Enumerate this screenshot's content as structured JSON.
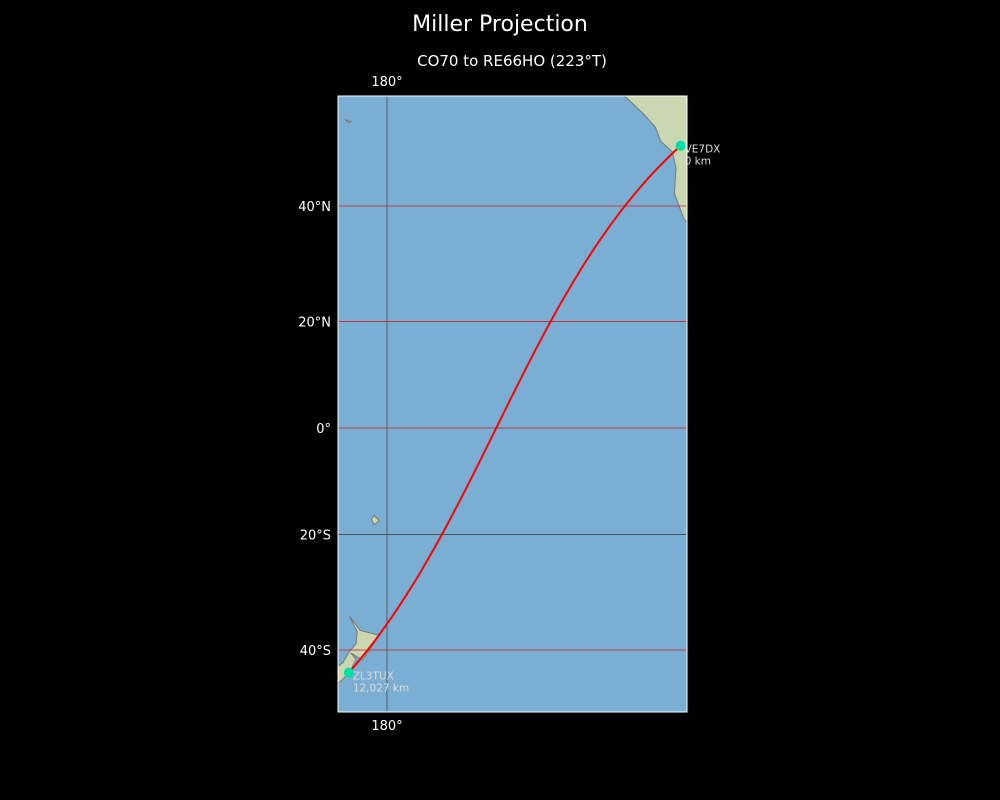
{
  "title": "Miller Projection",
  "subtitle": "CO70 to RE66HO (223°T)",
  "map": {
    "projection": "miller",
    "extent": {
      "lon_min": 170.5,
      "lon_max": -122.0,
      "lat_min": -51,
      "lat_max": 58
    },
    "colors": {
      "ocean": "#7aaed3",
      "land": "#c9d8b0",
      "path": "#ff0000",
      "station": "#00e0a0",
      "grid_red": "#d02020",
      "grid_dark": "#444444"
    },
    "parallels": [
      {
        "lat": 40,
        "label": "40°N",
        "color": "red"
      },
      {
        "lat": 20,
        "label": "20°N",
        "color": "red"
      },
      {
        "lat": 0,
        "label": "0°",
        "color": "red"
      },
      {
        "lat": -20,
        "label": "20°S",
        "color": "dark"
      },
      {
        "lat": -40,
        "label": "40°S",
        "color": "red"
      }
    ],
    "meridians": [
      {
        "lon": 180,
        "label_top": "180°",
        "label_bottom": "180°"
      }
    ],
    "stations": [
      {
        "call": "VE7DX",
        "distance": "0 km",
        "lat": 49.3,
        "lon": -123.1
      },
      {
        "call": "ZL3TUX",
        "distance": "12,027 km",
        "lat": -43.6,
        "lon": 172.6
      }
    ]
  }
}
